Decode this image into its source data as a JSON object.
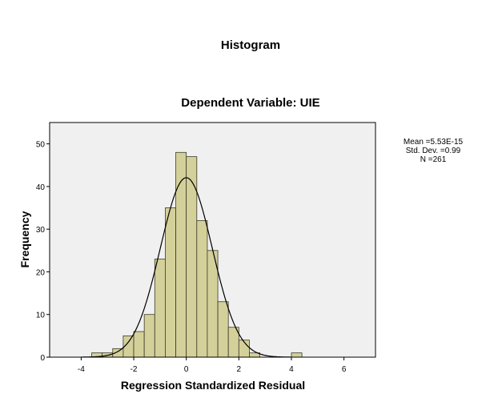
{
  "chart_data": {
    "type": "bar",
    "title": "Histogram",
    "subtitle": "Dependent Variable: UIE",
    "xlabel": "Regression Standardized Residual",
    "ylabel": "Frequency",
    "xlim": [
      -5.2,
      7.2
    ],
    "ylim": [
      0,
      55
    ],
    "x_ticks": [
      -4,
      -2,
      0,
      2,
      4,
      6
    ],
    "y_ticks": [
      0,
      10,
      20,
      30,
      40,
      50
    ],
    "bin_width": 0.4,
    "bins": [
      {
        "x0": -3.6,
        "x1": -3.2,
        "count": 1
      },
      {
        "x0": -3.2,
        "x1": -2.8,
        "count": 1
      },
      {
        "x0": -2.8,
        "x1": -2.4,
        "count": 2
      },
      {
        "x0": -2.4,
        "x1": -2.0,
        "count": 5
      },
      {
        "x0": -2.0,
        "x1": -1.6,
        "count": 6
      },
      {
        "x0": -1.6,
        "x1": -1.2,
        "count": 10
      },
      {
        "x0": -1.2,
        "x1": -0.8,
        "count": 23
      },
      {
        "x0": -0.8,
        "x1": -0.4,
        "count": 35
      },
      {
        "x0": -0.4,
        "x1": 0.0,
        "count": 48
      },
      {
        "x0": 0.0,
        "x1": 0.4,
        "count": 47
      },
      {
        "x0": 0.4,
        "x1": 0.8,
        "count": 32
      },
      {
        "x0": 0.8,
        "x1": 1.2,
        "count": 25
      },
      {
        "x0": 1.2,
        "x1": 1.6,
        "count": 13
      },
      {
        "x0": 1.6,
        "x1": 2.0,
        "count": 7
      },
      {
        "x0": 2.0,
        "x1": 2.4,
        "count": 4
      },
      {
        "x0": 2.4,
        "x1": 2.8,
        "count": 1
      },
      {
        "x0": 4.0,
        "x1": 4.4,
        "count": 1
      }
    ],
    "normal_curve": {
      "mean": 5.53e-15,
      "sd": 0.99,
      "n": 261
    },
    "grid": false,
    "stats_text": [
      "Mean =5.53E-15",
      "Std. Dev. =0.99",
      "N =261"
    ],
    "colors": {
      "bar_fill": "#d4d09a",
      "bar_stroke": "#3a3a2a",
      "plot_bg": "#f0f0f0",
      "curve": "#000000"
    }
  }
}
